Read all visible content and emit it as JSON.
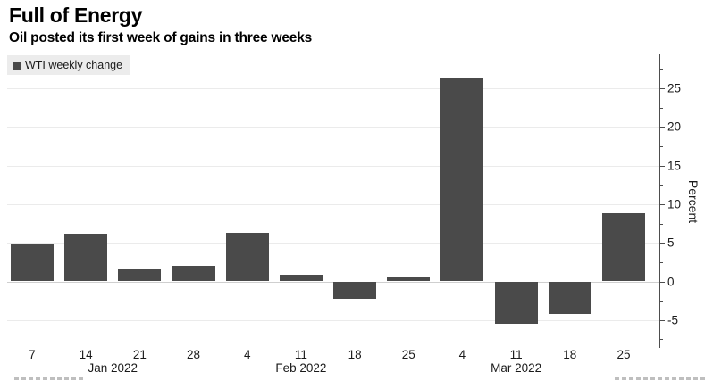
{
  "header": {
    "title": "Full of Energy",
    "subtitle": "Oil posted its first week of gains in three weeks"
  },
  "legend": {
    "label": "WTI weekly change",
    "swatch_color": "#4a4a4a",
    "background": "#ececec",
    "position": "top-left"
  },
  "chart_data": {
    "type": "bar",
    "title": "Full of Energy",
    "subtitle": "Oil posted its first week of gains in three weeks",
    "series_name": "WTI weekly change",
    "categories": [
      "Jan 7 2022",
      "Jan 14 2022",
      "Jan 21 2022",
      "Jan 28 2022",
      "Feb 4 2022",
      "Feb 11 2022",
      "Feb 18 2022",
      "Feb 25 2022",
      "Mar 4 2022",
      "Mar 11 2022",
      "Mar 18 2022",
      "Mar 25 2022"
    ],
    "x_tick_labels": [
      "7",
      "14",
      "21",
      "28",
      "4",
      "11",
      "18",
      "25",
      "4",
      "11",
      "18",
      "25"
    ],
    "month_labels": [
      {
        "text": "Jan 2022",
        "center_index": 1.5
      },
      {
        "text": "Feb 2022",
        "center_index": 5
      },
      {
        "text": "Mar 2022",
        "center_index": 9
      }
    ],
    "values": [
      4.9,
      6.2,
      1.6,
      2.0,
      6.3,
      0.9,
      -2.2,
      0.6,
      26.3,
      -5.5,
      -4.2,
      8.8
    ],
    "xlabel": "",
    "ylabel": "Percent",
    "y_major_ticks": [
      -5,
      0,
      5,
      10,
      15,
      20,
      25
    ],
    "y_minor_ticks": [
      -7.5,
      -2.5,
      2.5,
      7.5,
      12.5,
      17.5,
      22.5,
      27.5
    ],
    "ylim": [
      -8.6,
      29.5
    ],
    "grid": "horizontal",
    "bar_color": "#4a4a4a",
    "gridline_color": "#ebebeb",
    "zero_line_color": "#cfcfcf",
    "legend_position": "top-left"
  }
}
